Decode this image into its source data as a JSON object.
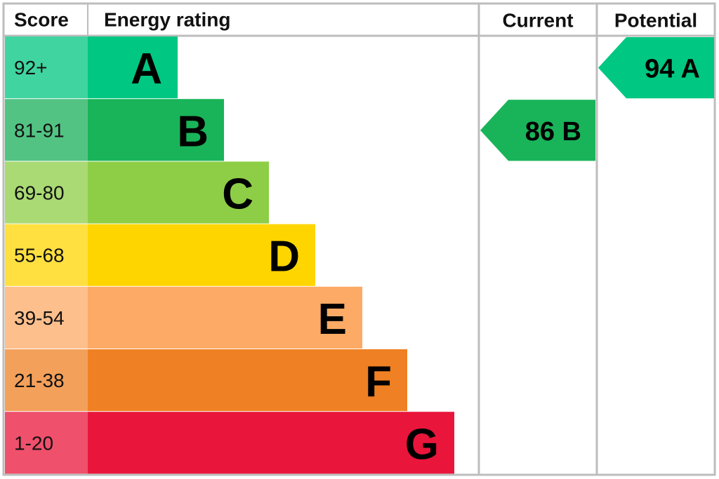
{
  "header": {
    "score": "Score",
    "energy_rating": "Energy rating",
    "current": "Current",
    "potential": "Potential"
  },
  "bands": [
    {
      "score": "92+",
      "letter": "A",
      "color": "#00c781",
      "score_color": "#40d4a1"
    },
    {
      "score": "81-91",
      "letter": "B",
      "color": "#19b459",
      "score_color": "#53c383"
    },
    {
      "score": "69-80",
      "letter": "C",
      "color": "#8dce46",
      "score_color": "#aada74"
    },
    {
      "score": "55-68",
      "letter": "D",
      "color": "#ffd500",
      "score_color": "#ffe040"
    },
    {
      "score": "39-54",
      "letter": "E",
      "color": "#fcaa65",
      "score_color": "#fdbf8c"
    },
    {
      "score": "21-38",
      "letter": "F",
      "color": "#ef8023",
      "score_color": "#f3a05a"
    },
    {
      "score": "1-20",
      "letter": "G",
      "color": "#e9153b",
      "score_color": "#ef506c"
    }
  ],
  "current": {
    "score": 86,
    "rating": "B"
  },
  "potential": {
    "score": 94,
    "rating": "A"
  }
}
